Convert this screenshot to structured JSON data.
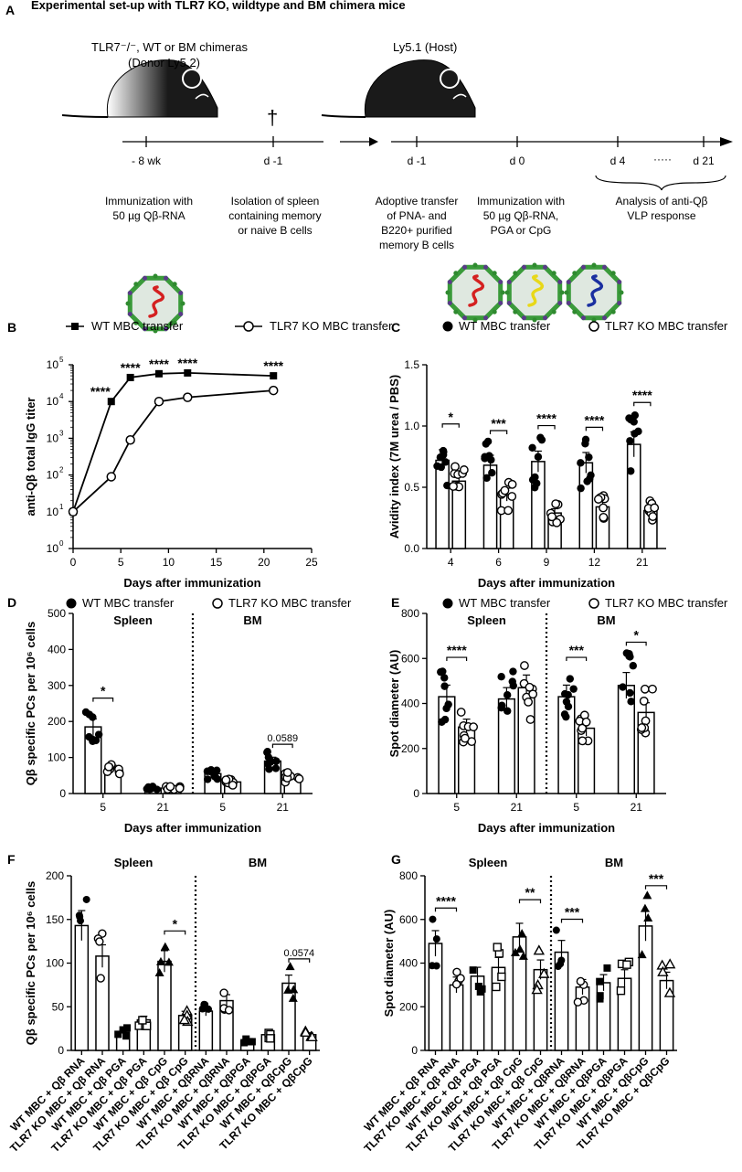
{
  "panel_a": {
    "letter": "A",
    "title": "Experimental set-up with TLR7 KO, wildtype and BM chimera mice",
    "donor_label_1": "TLR7⁻/⁻, WT or BM chimeras",
    "donor_label_2": "(Donor Ly5.2)",
    "host_label": "Ly5.1 (Host)",
    "dagger": "†",
    "dots": "·····",
    "timeline1_ticks": [
      "- 8 wk",
      "d -1"
    ],
    "timeline2_ticks": [
      "d -1",
      "d 0",
      "d 4",
      "d 21"
    ],
    "desc_immunization_1": "Immunization with",
    "desc_immunization_2": "50 µg Qβ-RNA",
    "desc_isolation_1": "Isolation of spleen",
    "desc_isolation_2": "containing memory",
    "desc_isolation_3": "or naive B cells",
    "desc_transfer_1": "Adoptive transfer",
    "desc_transfer_2": "of PNA- and",
    "desc_transfer_3": "B220+ purified",
    "desc_transfer_4": "memory B cells",
    "desc_immun2_1": "Immunization with",
    "desc_immun2_2": "50 µg Qβ-RNA,",
    "desc_immun2_3": "PGA or CpG",
    "desc_analysis_1": "Analysis of anti-Qβ",
    "desc_analysis_2": "VLP response",
    "colors": {
      "rna": "#d42020",
      "pga": "#e8d818",
      "cpg": "#1a2fa0",
      "vlp_green": "#3a9a3a",
      "vlp_purple": "#5a3a8a"
    }
  },
  "chart_data": [
    {
      "panel": "B",
      "type": "line",
      "legend": [
        "WT MBC transfer",
        "TLR7 KO MBC transfer"
      ],
      "xlabel": "Days after immunization",
      "ylabel": "anti-Qβ total IgG titer",
      "xlim": [
        0,
        25
      ],
      "xticks": [
        "0",
        "5",
        "10",
        "15",
        "20",
        "25"
      ],
      "ylog": true,
      "ylim_exp": [
        0,
        5
      ],
      "ytick_base": "10",
      "yticks_exp": [
        "0",
        "1",
        "2",
        "3",
        "4",
        "5"
      ],
      "series": [
        {
          "name": "WT MBC transfer",
          "x": [
            0,
            4,
            6,
            9,
            12,
            21
          ],
          "y": [
            10,
            10000,
            45000,
            57000,
            60000,
            50000
          ]
        },
        {
          "name": "TLR7 KO MBC transfer",
          "x": [
            0,
            4,
            6,
            9,
            12,
            21
          ],
          "y": [
            10,
            90,
            900,
            10000,
            13000,
            20000
          ]
        }
      ],
      "annotations": [
        {
          "x": 4,
          "text": "****"
        },
        {
          "x": 6,
          "text": "****"
        },
        {
          "x": 9,
          "text": "****"
        },
        {
          "x": 12,
          "text": "****"
        },
        {
          "x": 21,
          "text": "****"
        }
      ]
    },
    {
      "panel": "C",
      "type": "bar",
      "legend": [
        "WT MBC transfer",
        "TLR7 KO MBC transfer"
      ],
      "xlabel": "Days after immunization",
      "ylabel": "Avidity index (7M urea / PBS)",
      "ylim": [
        0,
        1.5
      ],
      "yticks": [
        "0.0",
        "0.5",
        "1.0",
        "1.5"
      ],
      "categories": [
        "4",
        "6",
        "9",
        "12",
        "21"
      ],
      "series": [
        {
          "name": "WT MBC transfer",
          "values": [
            0.72,
            0.68,
            0.71,
            0.7,
            0.85
          ]
        },
        {
          "name": "TLR7 KO MBC transfer",
          "values": [
            0.55,
            0.44,
            0.29,
            0.34,
            0.31
          ]
        }
      ],
      "significance": [
        "*",
        "***",
        "****",
        "****",
        "****"
      ]
    },
    {
      "panel": "D",
      "type": "bar",
      "legend": [
        "WT MBC transfer",
        "TLR7 KO MBC transfer"
      ],
      "xlabel": "Days after immunization",
      "ylabel": "Qβ specific PCs per 10⁶ cells",
      "ylim": [
        0,
        500
      ],
      "yticks": [
        "0",
        "100",
        "200",
        "300",
        "400",
        "500"
      ],
      "sections": [
        "Spleen",
        "BM"
      ],
      "categories": [
        "5",
        "21",
        "5",
        "21"
      ],
      "series": [
        {
          "name": "WT MBC transfer",
          "values": [
            185,
            15,
            55,
            90
          ]
        },
        {
          "name": "TLR7 KO MBC transfer",
          "values": [
            70,
            15,
            32,
            45
          ]
        }
      ],
      "significance": [
        "*",
        "",
        "",
        "0.0589"
      ]
    },
    {
      "panel": "E",
      "type": "bar",
      "legend": [
        "WT MBC transfer",
        "TLR7 KO MBC transfer"
      ],
      "xlabel": "Days after immunization",
      "ylabel": "Spot diameter (AU)",
      "ylim": [
        0,
        800
      ],
      "yticks": [
        "0",
        "200",
        "400",
        "600",
        "800"
      ],
      "sections": [
        "Spleen",
        "BM"
      ],
      "categories": [
        "5",
        "21",
        "5",
        "21"
      ],
      "series": [
        {
          "name": "WT MBC transfer",
          "values": [
            430,
            420,
            430,
            480
          ]
        },
        {
          "name": "TLR7 KO MBC transfer",
          "values": [
            295,
            470,
            290,
            360
          ]
        }
      ],
      "significance": [
        "****",
        "",
        "***",
        "*"
      ]
    },
    {
      "panel": "F",
      "type": "bar",
      "ylabel": "Qβ specific PCs per 10⁶ cells",
      "ylim": [
        0,
        200
      ],
      "yticks": [
        "0",
        "50",
        "100",
        "150",
        "200"
      ],
      "sections": [
        "Spleen",
        "BM"
      ],
      "categories": [
        "WT MBC + Qβ RNA",
        "TLR7 KO MBC + Qβ RNA",
        "WT MBC + Qβ PGA",
        "TLR7 KO MBC + Qβ PGA",
        "WT MBC + Qβ CpG",
        "TLR7 KO MBC + Qβ CpG",
        "WT MBC + QβRNA",
        "TLR7 KO MBC + QβRNA",
        "WT MBC + QβPGA",
        "TLR7 KO MBC + QβPGA",
        "WT MBC + QβCpG",
        "TLR7 KO MBC + QβCpG"
      ],
      "values": [
        143,
        108,
        21,
        35,
        102,
        40,
        45,
        57,
        11,
        18,
        77,
        18
      ],
      "significance": [
        {
          "pair": [
            4,
            5
          ],
          "text": "*"
        },
        {
          "pair": [
            10,
            11
          ],
          "text": "0.0574"
        }
      ]
    },
    {
      "panel": "G",
      "type": "bar",
      "ylabel": "Spot diameter (AU)",
      "ylim": [
        0,
        800
      ],
      "yticks": [
        "0",
        "200",
        "400",
        "600",
        "800"
      ],
      "sections": [
        "Spleen",
        "BM"
      ],
      "categories": [
        "WT MBC + Qβ RNA",
        "TLR7 KO MBC + Qβ RNA",
        "WT MBC + Qβ PGA",
        "TLR7 KO MBC + Qβ PGA",
        "WT MBC + Qβ CpG",
        "TLR7 KO MBC + Qβ CpG",
        "WT MBC + QβRNA",
        "TLR7 KO MBC + QβRNA",
        "WT MBC + QβPGA",
        "TLR7 KO MBC + QβPGA",
        "WT MBC + QβCpG",
        "TLR7 KO MBC + QβCpG"
      ],
      "values": [
        490,
        300,
        340,
        380,
        520,
        370,
        450,
        290,
        310,
        330,
        570,
        320
      ],
      "significance": [
        {
          "pair": [
            0,
            1
          ],
          "text": "****"
        },
        {
          "pair": [
            4,
            5
          ],
          "text": "**"
        },
        {
          "pair": [
            6,
            7
          ],
          "text": "***"
        },
        {
          "pair": [
            10,
            11
          ],
          "text": "***"
        }
      ]
    }
  ]
}
